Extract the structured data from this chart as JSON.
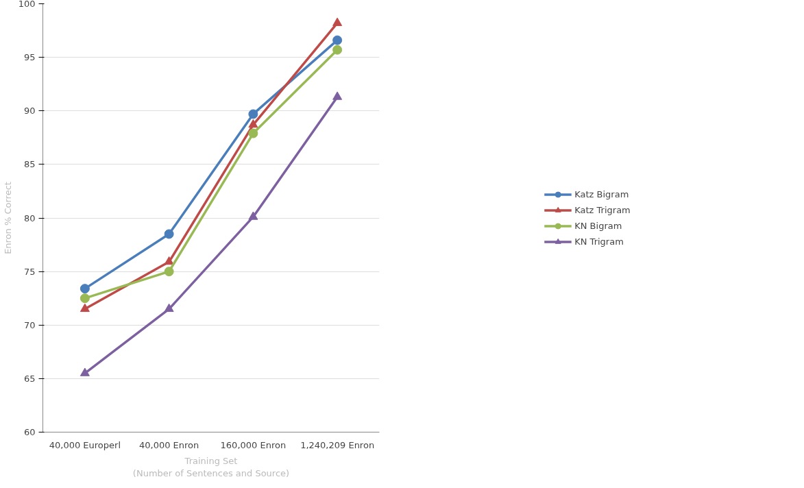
{
  "chart_data": {
    "type": "line",
    "xlabel": "Training Set\n(Number of Sentences and Source)",
    "ylabel": "Enron % Correct",
    "categories": [
      "40,000 Europerl",
      "40,000 Enron",
      "160,000 Enron",
      "1,240,209 Enron"
    ],
    "series": [
      {
        "name": "Katz Bigram",
        "color": "#4a7ebb",
        "marker": "circle",
        "values": [
          73.4,
          78.5,
          89.7,
          96.6
        ]
      },
      {
        "name": "Katz Trigram",
        "color": "#be4b48",
        "marker": "triangle",
        "values": [
          71.5,
          75.9,
          88.7,
          98.2
        ]
      },
      {
        "name": "KN Bigram",
        "color": "#98b954",
        "marker": "circle",
        "values": [
          72.5,
          75.0,
          87.9,
          95.7
        ]
      },
      {
        "name": "KN Trigram",
        "color": "#7d60a0",
        "marker": "triangle",
        "values": [
          65.5,
          71.5,
          80.1,
          91.3
        ]
      }
    ],
    "ylim": [
      60,
      100
    ],
    "yticks": [
      60,
      65,
      70,
      75,
      80,
      85,
      90,
      95,
      100
    ],
    "grid": "y",
    "legend": "right"
  }
}
